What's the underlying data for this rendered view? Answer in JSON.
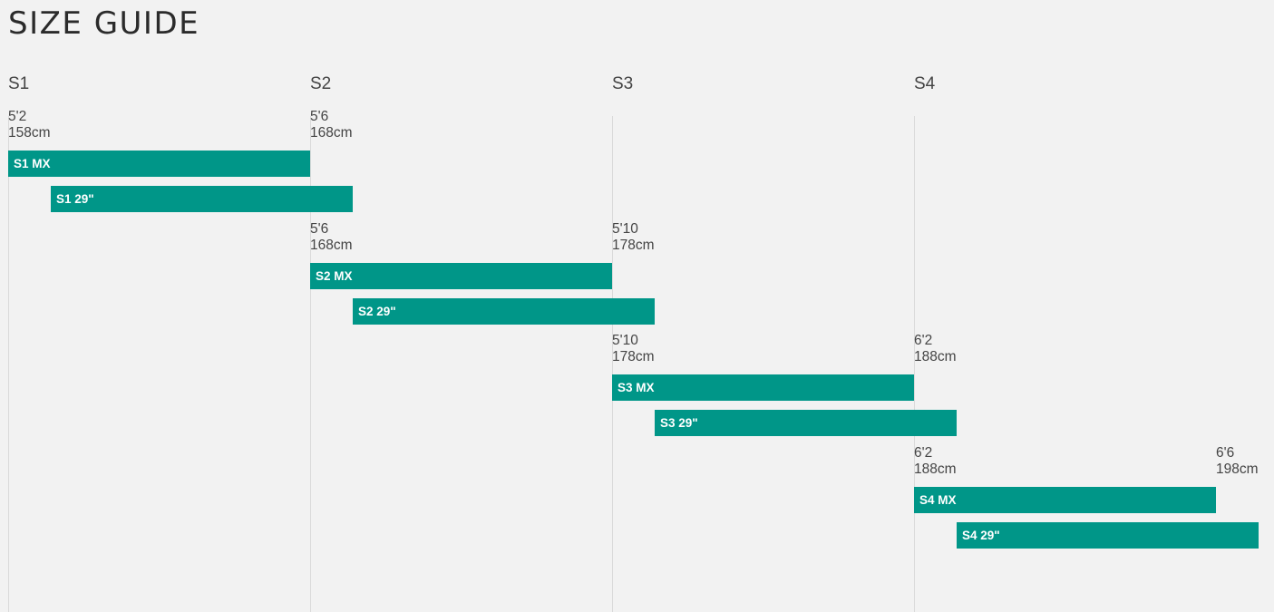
{
  "page": {
    "title": "SIZE GUIDE"
  },
  "colors": {
    "bar": "#009688",
    "background": "#f2f2f2",
    "gridline": "#dadada"
  },
  "chart_data": {
    "type": "bar",
    "orientation": "horizontal-range",
    "title": "SIZE GUIDE",
    "size_columns": [
      "S1",
      "S2",
      "S3",
      "S4"
    ],
    "groups": [
      {
        "size": "S1",
        "range": [
          {
            "height_ft": "5'2",
            "height_cm": "158cm"
          },
          {
            "height_ft": "5'6",
            "height_cm": "168cm"
          }
        ],
        "bars": [
          {
            "label": "S1 MX",
            "start_cm": 158,
            "end_cm": 168
          },
          {
            "label": "S1 29\"",
            "start_cm": 159.4,
            "end_cm": 169.4
          }
        ]
      },
      {
        "size": "S2",
        "range": [
          {
            "height_ft": "5'6",
            "height_cm": "168cm"
          },
          {
            "height_ft": "5'10",
            "height_cm": "178cm"
          }
        ],
        "bars": [
          {
            "label": "S2 MX",
            "start_cm": 168,
            "end_cm": 178
          },
          {
            "label": "S2 29\"",
            "start_cm": 169.4,
            "end_cm": 179.4
          }
        ]
      },
      {
        "size": "S3",
        "range": [
          {
            "height_ft": "5'10",
            "height_cm": "178cm"
          },
          {
            "height_ft": "6'2",
            "height_cm": "188cm"
          }
        ],
        "bars": [
          {
            "label": "S3 MX",
            "start_cm": 178,
            "end_cm": 188
          },
          {
            "label": "S3 29\"",
            "start_cm": 179.4,
            "end_cm": 189.4
          }
        ]
      },
      {
        "size": "S4",
        "range": [
          {
            "height_ft": "6'2",
            "height_cm": "188cm"
          },
          {
            "height_ft": "6'6",
            "height_cm": "198cm"
          }
        ],
        "bars": [
          {
            "label": "S4 MX",
            "start_cm": 188,
            "end_cm": 198
          },
          {
            "label": "S4 29\"",
            "start_cm": 189.4,
            "end_cm": 199.4
          }
        ]
      }
    ]
  }
}
